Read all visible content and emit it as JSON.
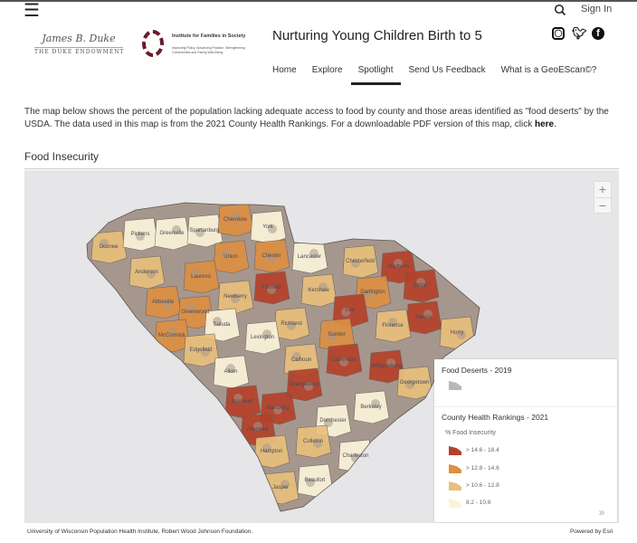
{
  "header": {
    "menu_icon": "hamburger-icon",
    "search_icon": "search-icon",
    "signin": "Sign In",
    "logo1_script": "James B. Duke",
    "logo1_text": "THE DUKE ENDOWMENT",
    "logo2_title": "Institute for Families in Society",
    "logo2_sub": "Improving Policy. Advancing Practice. Strengthening Communities and Family Well-Being",
    "title": "Nurturing Young Children Birth to 5",
    "social": [
      "instagram-icon",
      "twitter-icon",
      "facebook-icon"
    ]
  },
  "nav": [
    {
      "label": "Home"
    },
    {
      "label": "Explore"
    },
    {
      "label": "Spotlight",
      "active": true
    },
    {
      "label": "Send Us Feedback"
    },
    {
      "label": "What is a GeoEScan©?"
    }
  ],
  "intro": {
    "text": "The map below shows the percent of the population lacking adequate access to food by county and those areas identified as \"food deserts\" by the USDA. The data used in this map is from the 2021 County Health Rankings. For a downloadable PDF version of this map, click ",
    "link": "here",
    "end": "."
  },
  "section_title": "Food Insecurity",
  "map": {
    "zoom_in": "+",
    "zoom_out": "−",
    "collapse": "»",
    "colors": {
      "background": "#e6e6e8",
      "food_desert": "#a6978e",
      "c1": "#fbf3d9",
      "c2": "#e8bf7c",
      "c3": "#dd8f43",
      "c4": "#b5412a"
    },
    "legend": {
      "desert_title": "Food Deserts - 2019",
      "chr_title": "County Health Rankings - 2021",
      "field": "% Food Insecurity",
      "classes": [
        {
          "label": "> 14.6 - 18.4",
          "color": "#b5412a"
        },
        {
          "label": "> 12.8 - 14.6",
          "color": "#dd8f43"
        },
        {
          "label": "> 10.6 - 12.8",
          "color": "#e8bf7c"
        },
        {
          "label": "8.2 - 10.6",
          "color": "#fbf3d9"
        }
      ]
    },
    "counties": [
      {
        "name": "Oconee",
        "c": 2
      },
      {
        "name": "Pickens",
        "c": 1
      },
      {
        "name": "Greenville",
        "c": 1
      },
      {
        "name": "Spartanburg",
        "c": 1
      },
      {
        "name": "Cherokee",
        "c": 3
      },
      {
        "name": "York",
        "c": 1
      },
      {
        "name": "Union",
        "c": 3
      },
      {
        "name": "Chester",
        "c": 3
      },
      {
        "name": "Lancaster",
        "c": 1
      },
      {
        "name": "Chesterfield",
        "c": 2
      },
      {
        "name": "Marlboro",
        "c": 4
      },
      {
        "name": "Anderson",
        "c": 2
      },
      {
        "name": "Laurens",
        "c": 3
      },
      {
        "name": "Fairfield",
        "c": 4
      },
      {
        "name": "Kershaw",
        "c": 2
      },
      {
        "name": "Darlington",
        "c": 3
      },
      {
        "name": "Dillon",
        "c": 4
      },
      {
        "name": "Abbeville",
        "c": 3
      },
      {
        "name": "Greenwood",
        "c": 3
      },
      {
        "name": "Newberry",
        "c": 2
      },
      {
        "name": "Marion",
        "c": 4
      },
      {
        "name": "Lee",
        "c": 4
      },
      {
        "name": "Florence",
        "c": 2
      },
      {
        "name": "Horry",
        "c": 2
      },
      {
        "name": "Saluda",
        "c": 1
      },
      {
        "name": "Richland",
        "c": 2
      },
      {
        "name": "Lexington",
        "c": 1
      },
      {
        "name": "Sumter",
        "c": 3
      },
      {
        "name": "McCormick",
        "c": 3
      },
      {
        "name": "Edgefield",
        "c": 2
      },
      {
        "name": "Calhoun",
        "c": 2
      },
      {
        "name": "Clarendon",
        "c": 4
      },
      {
        "name": "Williamsburg",
        "c": 4
      },
      {
        "name": "Georgetown",
        "c": 2
      },
      {
        "name": "Aiken",
        "c": 1
      },
      {
        "name": "Orangeburg",
        "c": 4
      },
      {
        "name": "Barnwell",
        "c": 4
      },
      {
        "name": "Bamberg",
        "c": 4
      },
      {
        "name": "Berkeley",
        "c": 1
      },
      {
        "name": "Dorchester",
        "c": 1
      },
      {
        "name": "Allendale",
        "c": 4
      },
      {
        "name": "Colleton",
        "c": 2
      },
      {
        "name": "Hampton",
        "c": 2
      },
      {
        "name": "Charleston",
        "c": 1
      },
      {
        "name": "Jasper",
        "c": 2
      },
      {
        "name": "Beaufort",
        "c": 1
      }
    ]
  },
  "attribution": "University of Wisconsin Population Health Institute, Robert Wood Johnson Foundation.",
  "powered": "Powered by Esri"
}
